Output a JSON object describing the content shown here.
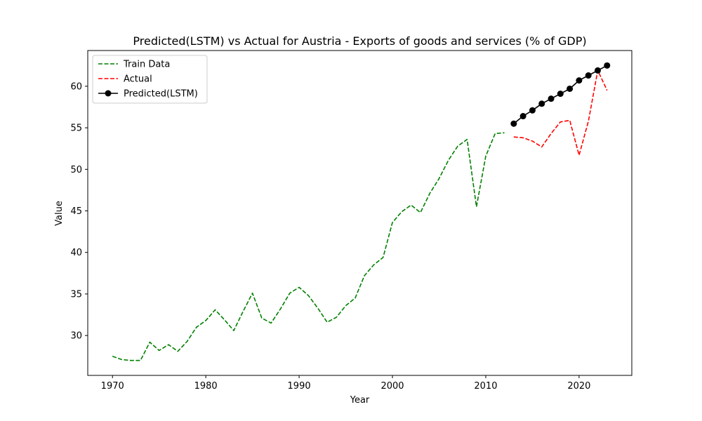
{
  "chart_data": {
    "type": "line",
    "title": "Predicted(LSTM) vs Actual for Austria - Exports of goods and services (% of GDP)",
    "xlabel": "Year",
    "ylabel": "Value",
    "xlim": [
      1967.35,
      2025.65
    ],
    "ylim": [
      25.2,
      64.3
    ],
    "xticks": [
      1970,
      1980,
      1990,
      2000,
      2010,
      2020
    ],
    "yticks": [
      30,
      35,
      40,
      45,
      50,
      55,
      60
    ],
    "grid": false,
    "legend_position": "top-left",
    "series": [
      {
        "name": "Train Data",
        "color": "#008000",
        "style": "dashed",
        "marker": "none",
        "x": [
          1970,
          1971,
          1972,
          1973,
          1974,
          1975,
          1976,
          1977,
          1978,
          1979,
          1980,
          1981,
          1982,
          1983,
          1984,
          1985,
          1986,
          1987,
          1988,
          1989,
          1990,
          1991,
          1992,
          1993,
          1994,
          1995,
          1996,
          1997,
          1998,
          1999,
          2000,
          2001,
          2002,
          2003,
          2004,
          2005,
          2006,
          2007,
          2008,
          2009,
          2010,
          2011,
          2012
        ],
        "y": [
          27.5,
          27.1,
          27.0,
          27.0,
          29.2,
          28.2,
          28.9,
          28.1,
          29.3,
          31.0,
          31.8,
          33.1,
          31.9,
          30.6,
          32.9,
          35.1,
          32.1,
          31.5,
          33.2,
          35.1,
          35.8,
          34.8,
          33.3,
          31.6,
          32.2,
          33.6,
          34.5,
          37.2,
          38.5,
          39.4,
          43.6,
          44.9,
          45.7,
          44.8,
          47.1,
          48.9,
          51.1,
          52.8,
          53.6,
          45.5,
          51.6,
          54.3,
          54.4
        ]
      },
      {
        "name": "Actual",
        "color": "#ff0000",
        "style": "dashed",
        "marker": "none",
        "x": [
          2013,
          2014,
          2015,
          2016,
          2017,
          2018,
          2019,
          2020,
          2021,
          2022,
          2023
        ],
        "y": [
          53.9,
          53.8,
          53.4,
          52.7,
          54.3,
          55.7,
          55.9,
          51.7,
          55.8,
          61.9,
          59.5
        ]
      },
      {
        "name": "Predicted(LSTM)",
        "color": "#000000",
        "style": "solid",
        "marker": "circle",
        "x": [
          2013,
          2014,
          2015,
          2016,
          2017,
          2018,
          2019,
          2020,
          2021,
          2022,
          2023
        ],
        "y": [
          55.5,
          56.4,
          57.1,
          57.9,
          58.5,
          59.1,
          59.7,
          60.7,
          61.3,
          61.9,
          62.5
        ]
      }
    ]
  }
}
